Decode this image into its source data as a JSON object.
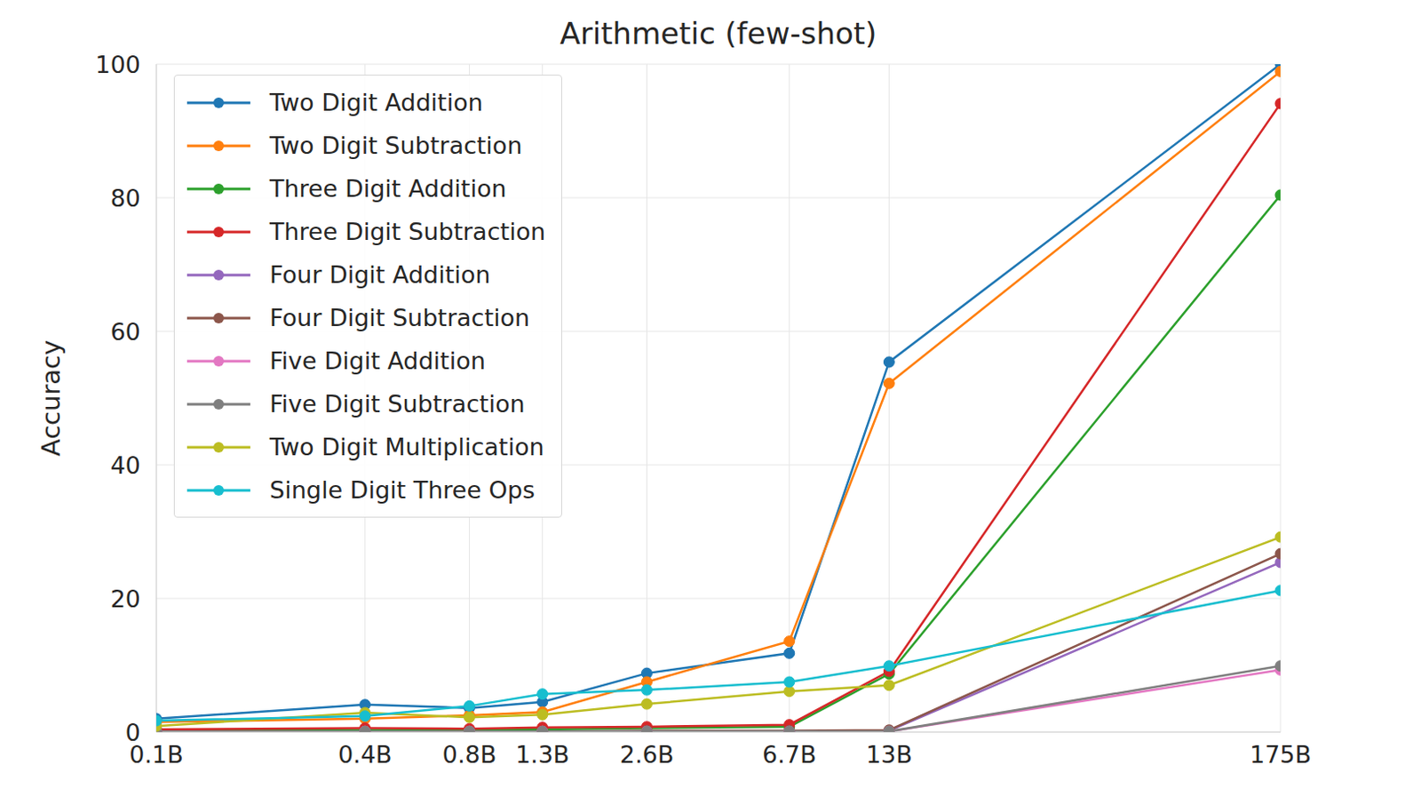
{
  "chart_data": {
    "type": "line",
    "title": "Arithmetic (few-shot)",
    "y_label": "Accuracy",
    "x": [
      0.1,
      0.4,
      0.8,
      1.3,
      2.6,
      6.7,
      13,
      175
    ],
    "log": "x",
    "xlim": [
      0.1,
      175
    ],
    "xticks": [
      {
        "value": 0.1,
        "label": "0.1B"
      },
      {
        "value": 0.4,
        "label": "0.4B"
      },
      {
        "value": 0.8,
        "label": "0.8B"
      },
      {
        "value": 1.3,
        "label": "1.3B"
      },
      {
        "value": 2.6,
        "label": "2.6B"
      },
      {
        "value": 6.7,
        "label": "6.7B"
      },
      {
        "value": 13,
        "label": "13B"
      },
      {
        "value": 175,
        "label": "175B"
      }
    ],
    "ylim": [
      0,
      100
    ],
    "yticks": [
      0,
      20,
      40,
      60,
      80,
      100
    ],
    "grid": true,
    "legend": "upper left",
    "marker": "circle",
    "line_style": "solid",
    "series": [
      {
        "name": "Two Digit Addition",
        "color": "#1f77b4",
        "values": [
          2.0,
          4.1,
          3.6,
          4.5,
          8.8,
          11.8,
          55.4,
          100
        ]
      },
      {
        "name": "Two Digit Subtraction",
        "color": "#ff7f0e",
        "values": [
          1.5,
          2.0,
          2.5,
          3.0,
          7.5,
          13.6,
          52.2,
          98.9
        ]
      },
      {
        "name": "Three Digit Addition",
        "color": "#2ca02c",
        "values": [
          0.3,
          0.3,
          0.3,
          0.4,
          0.6,
          0.8,
          8.7,
          80.4
        ]
      },
      {
        "name": "Three Digit Subtraction",
        "color": "#d62728",
        "values": [
          0.4,
          0.6,
          0.5,
          0.7,
          0.8,
          1.1,
          9.1,
          94.1
        ]
      },
      {
        "name": "Four Digit Addition",
        "color": "#9467bd",
        "values": [
          0.1,
          0.1,
          0.1,
          0.1,
          0.1,
          0.1,
          0.2,
          25.4
        ]
      },
      {
        "name": "Four Digit Subtraction",
        "color": "#8c564b",
        "values": [
          0.1,
          0.1,
          0.1,
          0.1,
          0.2,
          0.2,
          0.3,
          26.7
        ]
      },
      {
        "name": "Five Digit Addition",
        "color": "#e377c2",
        "values": [
          0.1,
          0.1,
          0.1,
          0.1,
          0.1,
          0.1,
          0.1,
          9.3
        ]
      },
      {
        "name": "Five Digit Subtraction",
        "color": "#7f7f7f",
        "values": [
          0.1,
          0.1,
          0.1,
          0.1,
          0.1,
          0.1,
          0.1,
          9.9
        ]
      },
      {
        "name": "Two Digit Multiplication",
        "color": "#bcbd22",
        "values": [
          0.9,
          2.9,
          2.2,
          2.6,
          4.2,
          6.1,
          7.0,
          29.2
        ]
      },
      {
        "name": "Single Digit Three Ops",
        "color": "#17becf",
        "values": [
          1.7,
          2.4,
          3.9,
          5.7,
          6.3,
          7.5,
          9.9,
          21.2
        ]
      }
    ]
  }
}
